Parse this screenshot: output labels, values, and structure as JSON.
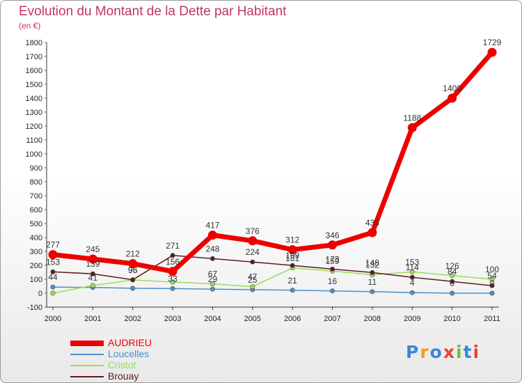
{
  "title": "Evolution du Montant de la Dette par Habitant",
  "subtitle": "(en €)",
  "brand": {
    "logo_text": "Proxiti"
  },
  "chart_data": {
    "type": "line",
    "title": "Evolution du Montant de la Dette par Habitant",
    "ylabel": "(en €)",
    "xlabel": "",
    "ylim": [
      -100,
      1800
    ],
    "yticks": [
      -100,
      0,
      100,
      200,
      300,
      400,
      500,
      600,
      700,
      800,
      900,
      1000,
      1100,
      1200,
      1300,
      1400,
      1500,
      1600,
      1700,
      1800
    ],
    "categories": [
      "2000",
      "2001",
      "2002",
      "2003",
      "2004",
      "2005",
      "2006",
      "2007",
      "2008",
      "2009",
      "2010",
      "2011"
    ],
    "grid": false,
    "legend_position": "bottom-left",
    "series": [
      {
        "name": "Loucelles",
        "color": "#4b8fc8",
        "values": [
          44,
          41,
          35,
          33,
          29,
          25,
          21,
          16,
          11,
          4,
          0,
          0
        ],
        "labels": [
          "44",
          "41",
          "",
          "33",
          "29",
          "25",
          "21",
          "16",
          "11",
          "4",
          "0",
          "0"
        ]
      },
      {
        "name": "Cristot",
        "color": "#99dd55",
        "values": [
          0,
          55,
          95,
          80,
          67,
          47,
          181,
          159,
          132,
          153,
          126,
          100
        ],
        "labels": [
          "",
          "",
          "95",
          "",
          "67",
          "47",
          "181",
          "159",
          "132",
          "153",
          "126",
          "100"
        ]
      },
      {
        "name": "Brouay",
        "color": "#5e1a1a",
        "values": [
          153,
          139,
          96,
          271,
          248,
          224,
          199,
          173,
          148,
          114,
          84,
          54
        ],
        "labels": [
          "153",
          "139",
          "96",
          "271",
          "248",
          "224",
          "199",
          "173",
          "148",
          "114",
          "84",
          "54"
        ]
      },
      {
        "name": "AUDRIEU",
        "color": "#ee0000",
        "values": [
          277,
          245,
          212,
          156,
          417,
          376,
          312,
          346,
          435,
          1188,
          1400,
          1729
        ],
        "labels": [
          "277",
          "245",
          "212",
          "156",
          "417",
          "376",
          "312",
          "346",
          "435",
          "1188",
          "1400",
          "1729"
        ]
      }
    ]
  },
  "legend": [
    {
      "name": "AUDRIEU",
      "color": "#ee0000"
    },
    {
      "name": "Loucelles",
      "color": "#4b8fc8"
    },
    {
      "name": "Cristot",
      "color": "#99dd55"
    },
    {
      "name": "Brouay",
      "color": "#5e1a1a"
    }
  ]
}
